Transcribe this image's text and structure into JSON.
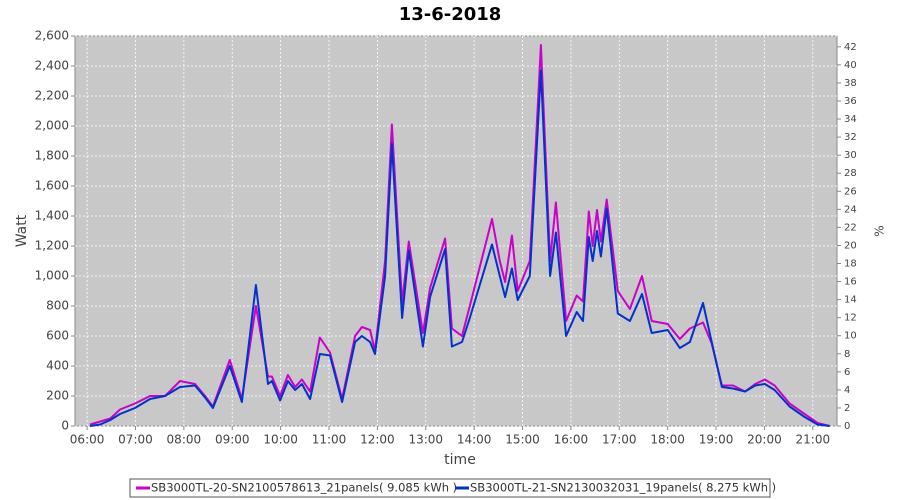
{
  "chart_data": {
    "type": "line",
    "title": "13-6-2018",
    "xlabel": "time",
    "ylabel": "Watt",
    "y2label": "%",
    "xlim": [
      5.75,
      21.5
    ],
    "xticks": [
      {
        "value": 6,
        "label": "06:00"
      },
      {
        "value": 7,
        "label": "07:00"
      },
      {
        "value": 8,
        "label": "08:00"
      },
      {
        "value": 9,
        "label": "09:00"
      },
      {
        "value": 10,
        "label": "10:00"
      },
      {
        "value": 11,
        "label": "11:00"
      },
      {
        "value": 12,
        "label": "12:00"
      },
      {
        "value": 13,
        "label": "13:00"
      },
      {
        "value": 14,
        "label": "14:00"
      },
      {
        "value": 15,
        "label": "15:00"
      },
      {
        "value": 16,
        "label": "16:00"
      },
      {
        "value": 17,
        "label": "17:00"
      },
      {
        "value": 18,
        "label": "18:00"
      },
      {
        "value": 19,
        "label": "19:00"
      },
      {
        "value": 20,
        "label": "20:00"
      },
      {
        "value": 21,
        "label": "21:00"
      }
    ],
    "ylim": [
      0,
      2600
    ],
    "yticks": [
      0,
      200,
      400,
      600,
      800,
      {
        "value": 1000,
        "label": "1,000"
      },
      {
        "value": 1200,
        "label": "1,200"
      },
      {
        "value": 1400,
        "label": "1,400"
      },
      {
        "value": 1600,
        "label": "1,600"
      },
      {
        "value": 1800,
        "label": "1,800"
      },
      {
        "value": 2000,
        "label": "2,000"
      },
      {
        "value": 2200,
        "label": "2,200"
      },
      {
        "value": 2400,
        "label": "2,400"
      },
      {
        "value": 2600,
        "label": "2,600"
      }
    ],
    "y2lim": [
      0,
      43.2
    ],
    "y2ticks": [
      0,
      2,
      4,
      6,
      8,
      10,
      12,
      14,
      16,
      18,
      20,
      22,
      24,
      26,
      28,
      30,
      32,
      34,
      36,
      38,
      40,
      42
    ],
    "grid": true,
    "legend": "bottom",
    "x": [
      6.06,
      6.27,
      6.48,
      6.68,
      6.99,
      7.3,
      7.61,
      7.92,
      8.23,
      8.44,
      8.6,
      8.95,
      9.2,
      9.49,
      9.74,
      9.82,
      9.99,
      10.15,
      10.3,
      10.44,
      10.61,
      10.81,
      11.02,
      11.27,
      11.54,
      11.68,
      11.85,
      11.95,
      12.16,
      12.3,
      12.51,
      12.65,
      12.94,
      13.09,
      13.4,
      13.54,
      13.75,
      13.91,
      14.37,
      14.53,
      14.64,
      14.78,
      14.9,
      15.15,
      15.38,
      15.57,
      15.69,
      15.9,
      16.12,
      16.25,
      16.37,
      16.45,
      16.54,
      16.62,
      16.74,
      16.97,
      17.22,
      17.47,
      17.67,
      18.0,
      18.25,
      18.46,
      18.73,
      18.91,
      19.12,
      19.35,
      19.6,
      19.81,
      20.01,
      20.21,
      20.52,
      20.83,
      21.1,
      21.35
    ],
    "series": [
      {
        "name": "SB3000TL-20-SN2100578613_21panels( 9.085 kWh )",
        "color": "#cc00cc",
        "values": [
          10,
          30,
          50,
          110,
          150,
          200,
          200,
          300,
          280,
          200,
          130,
          440,
          180,
          800,
          330,
          330,
          200,
          340,
          260,
          310,
          230,
          590,
          490,
          180,
          600,
          660,
          640,
          500,
          1100,
          2010,
          820,
          1230,
          620,
          920,
          1250,
          650,
          600,
          800,
          1380,
          1100,
          960,
          1270,
          900,
          1100,
          2540,
          1100,
          1490,
          700,
          870,
          830,
          1430,
          1200,
          1440,
          1230,
          1510,
          900,
          780,
          1000,
          700,
          680,
          580,
          650,
          690,
          550,
          270,
          270,
          230,
          280,
          310,
          270,
          150,
          80,
          20,
          0
        ]
      },
      {
        "name": "SB3000TL-21-SN2130032031_19panels( 8.275 kWh )",
        "color": "#0033cc",
        "values": [
          0,
          10,
          40,
          80,
          120,
          180,
          200,
          260,
          270,
          190,
          120,
          400,
          160,
          940,
          280,
          300,
          170,
          300,
          240,
          280,
          180,
          480,
          470,
          160,
          560,
          600,
          560,
          480,
          1000,
          1880,
          720,
          1170,
          530,
          860,
          1180,
          530,
          560,
          720,
          1210,
          1000,
          860,
          1050,
          840,
          1000,
          2370,
          1000,
          1290,
          600,
          760,
          700,
          1260,
          1100,
          1300,
          1130,
          1450,
          750,
          700,
          880,
          620,
          640,
          520,
          560,
          820,
          560,
          260,
          250,
          230,
          270,
          280,
          240,
          130,
          60,
          10,
          0
        ]
      }
    ]
  }
}
